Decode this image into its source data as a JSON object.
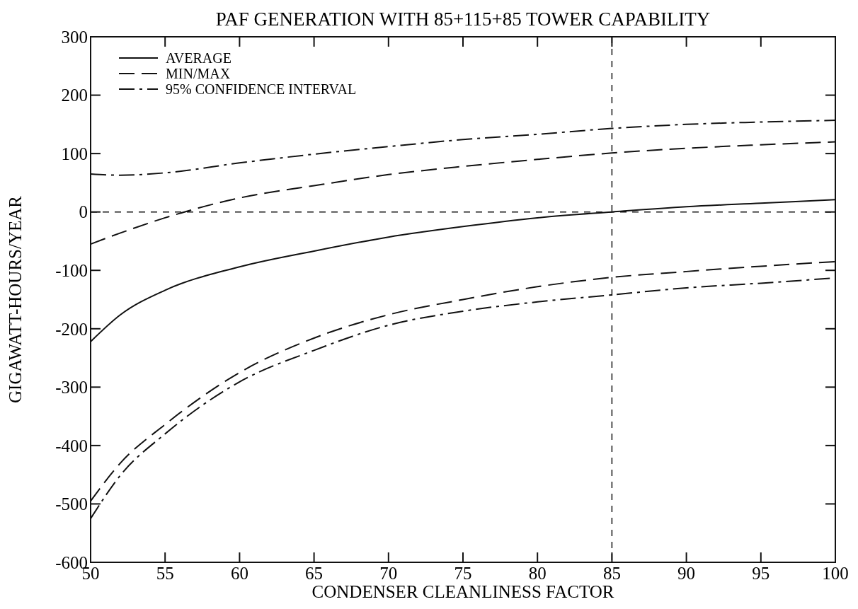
{
  "chart_data": {
    "type": "line",
    "title": "PAF GENERATION WITH 85+115+85 TOWER CAPABILITY",
    "xlabel": "CONDENSER CLEANLINESS FACTOR",
    "ylabel": "GIGAWATT-HOURS/YEAR",
    "xlim": [
      50,
      100
    ],
    "xticks": [
      50,
      55,
      60,
      65,
      70,
      75,
      80,
      85,
      90,
      95,
      100
    ],
    "ylim": [
      -600,
      300
    ],
    "yticks": [
      -600,
      -500,
      -400,
      -300,
      -200,
      -100,
      0,
      100,
      200,
      300
    ],
    "grid": false,
    "legend": "top left",
    "marker": "none",
    "x": [
      50,
      52,
      55,
      60,
      65,
      70,
      75,
      80,
      85,
      90,
      95,
      100
    ],
    "series": [
      {
        "name": "AVERAGE",
        "color": "#111111",
        "line_style": "solid",
        "values": [
          -222,
          -176,
          -134,
          -94,
          -67,
          -43,
          -25,
          -10,
          0,
          9,
          15,
          21
        ]
      },
      {
        "name": "MIN/MAX",
        "color": "#111111",
        "line_style": "dashed",
        "values": [
          -55,
          -36,
          -10,
          24,
          45,
          64,
          78,
          90,
          101,
          109,
          115,
          120
        ]
      },
      {
        "color": "#111111",
        "line_style": "dashed",
        "values": [
          -495,
          -430,
          -364,
          -275,
          -216,
          -176,
          -150,
          -128,
          -112,
          -102,
          -93,
          -85
        ]
      },
      {
        "name": "95% CONFIDENCE INTERVAL",
        "color": "#111111",
        "line_style": "dashdot",
        "values": [
          65,
          63,
          67,
          84,
          99,
          112,
          124,
          133,
          143,
          150,
          154,
          157
        ]
      },
      {
        "color": "#111111",
        "line_style": "dashdot",
        "values": [
          -525,
          -451,
          -380,
          -291,
          -237,
          -194,
          -170,
          -154,
          -142,
          -130,
          -122,
          -113
        ]
      }
    ],
    "ref_lines": [
      {
        "axis": "y",
        "value": 0,
        "line_style": "dashed"
      },
      {
        "axis": "x",
        "value": 85,
        "line_style": "dashed"
      }
    ]
  }
}
